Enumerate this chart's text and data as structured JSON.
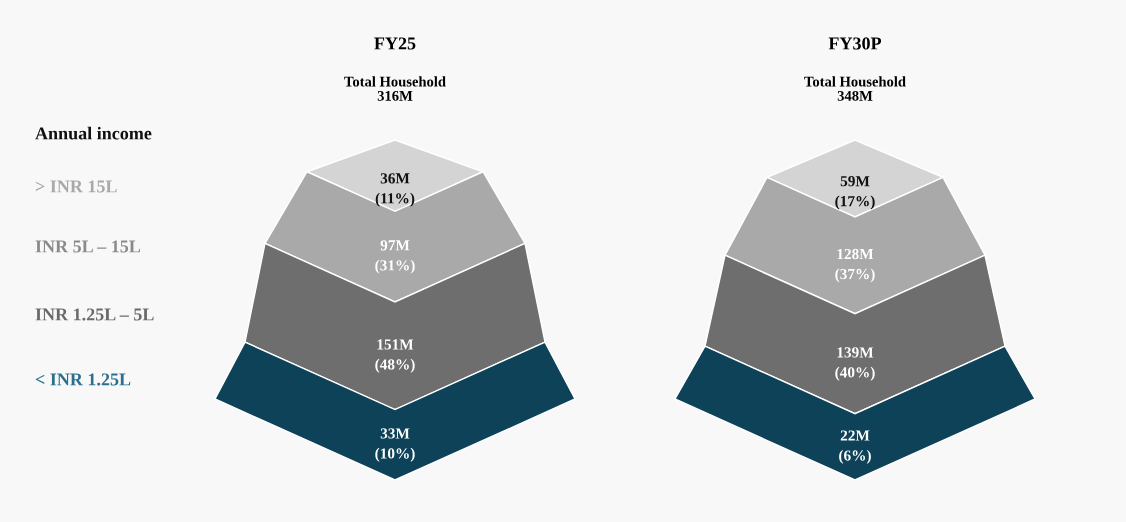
{
  "chart_data": [
    {
      "type": "other",
      "title": "FY25",
      "subtitle": "Total Household\n316M",
      "colors": [
        "#d4d4d4",
        "#a9a9a9",
        "#6e6e6e",
        "#0e4259"
      ],
      "values": [
        36,
        97,
        151,
        33
      ],
      "value_labels": [
        "36M",
        "97M",
        "151M",
        "33M"
      ],
      "annotations": [
        "Annual income",
        "> INR 15L",
        "INR 5L – 15L",
        "INR 1.25L – 5L",
        "< INR 1.25L",
        "(11%)",
        "(31%)",
        "(48%)",
        "(10%)"
      ]
    },
    {
      "type": "other",
      "title": "FY30P",
      "subtitle": "Total Household\n348M",
      "colors": [
        "#d4d4d4",
        "#a9a9a9",
        "#6e6e6e",
        "#0e4259"
      ],
      "values": [
        59,
        128,
        139,
        22
      ],
      "value_labels": [
        "59M",
        "128M",
        "139M",
        "22M"
      ],
      "annotations": [
        "(17%)",
        "(37%)",
        "(40%)",
        "(6%)"
      ]
    }
  ]
}
